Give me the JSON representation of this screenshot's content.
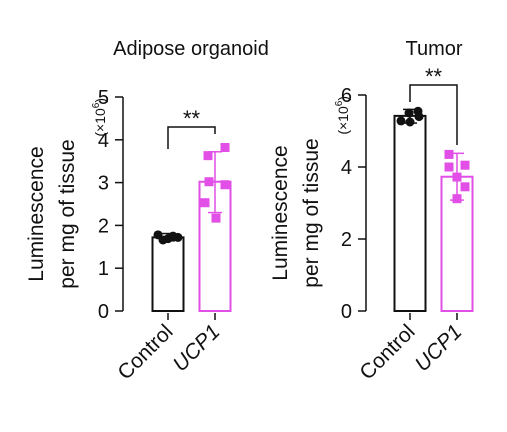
{
  "colors": {
    "control": "#111111",
    "ucp1": "#e14fe6",
    "axis": "#111111",
    "background": "#ffffff"
  },
  "chart_data": [
    {
      "type": "bar",
      "title": "Adipose organoid",
      "ylabel_line1": "Luminescence",
      "ylabel_line2": "per mg of tissue",
      "multiplier_base": "(×10",
      "multiplier_exp": "6",
      "multiplier_close": ")",
      "categories": [
        "Control",
        "UCP1"
      ],
      "ylim": [
        0,
        5
      ],
      "yticks": [
        0,
        1,
        2,
        3,
        4,
        5
      ],
      "significance": "**",
      "series": [
        {
          "mean": 1.72,
          "error": [
            1.64,
            1.81
          ],
          "points": [
            1.78,
            1.69,
            1.72,
            1.66,
            1.75
          ]
        },
        {
          "mean": 3.02,
          "error": [
            2.3,
            3.72
          ],
          "points": [
            3.82,
            3.63,
            3.02,
            2.95,
            2.53,
            2.17
          ]
        }
      ]
    },
    {
      "type": "bar",
      "title": "Tumor",
      "ylabel_line1": "Luminescence",
      "ylabel_line2": "per mg of tissue",
      "multiplier_base": "(×10",
      "multiplier_exp": "6",
      "multiplier_close": ")",
      "categories": [
        "Control",
        "UCP1"
      ],
      "ylim": [
        0,
        6
      ],
      "yticks": [
        0,
        2,
        4,
        6
      ],
      "significance": "**",
      "series": [
        {
          "mean": 5.42,
          "error": [
            5.22,
            5.6
          ],
          "points": [
            5.55,
            5.28,
            5.5,
            5.25,
            5.4
          ]
        },
        {
          "mean": 3.73,
          "error": [
            3.08,
            4.38
          ],
          "points": [
            4.35,
            4.05,
            4.0,
            3.72,
            3.45,
            3.12
          ]
        }
      ]
    }
  ]
}
